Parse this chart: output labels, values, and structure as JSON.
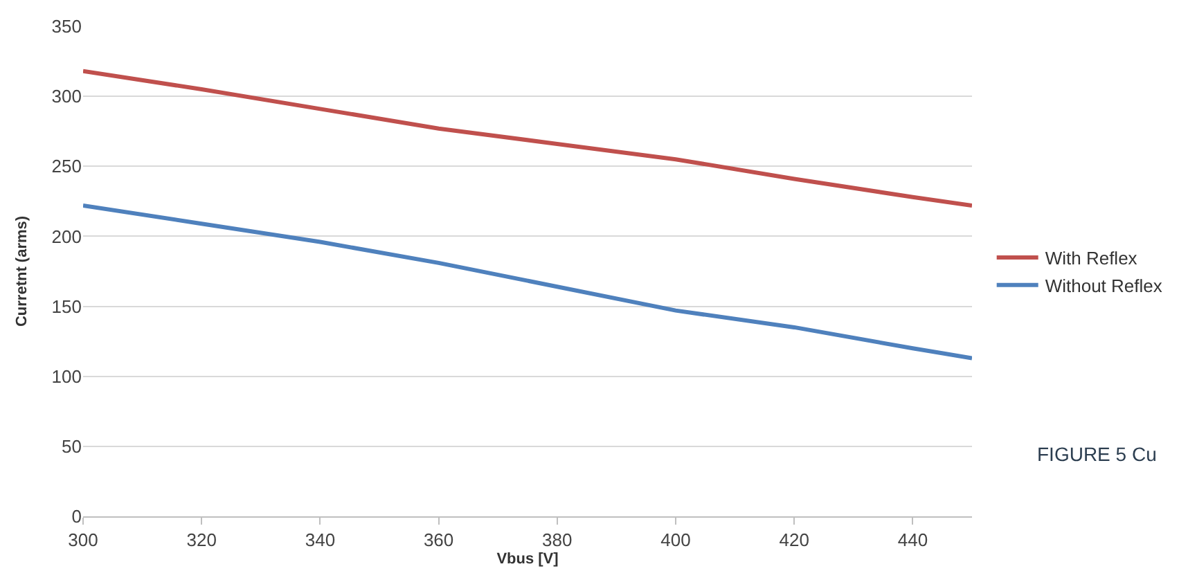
{
  "chart_data": {
    "type": "line",
    "xlabel": "Vbus [V]",
    "ylabel": "Curretnt (arms)",
    "x": [
      300,
      320,
      340,
      360,
      380,
      400,
      420,
      440,
      450
    ],
    "series": [
      {
        "name": "With Reflex",
        "color": "#c0504d",
        "values": [
          318,
          305,
          291,
          277,
          266,
          255,
          241,
          228,
          222
        ]
      },
      {
        "name": "Without Reflex",
        "color": "#4f81bd",
        "values": [
          222,
          209,
          196,
          181,
          164,
          147,
          135,
          120,
          113
        ]
      }
    ],
    "xlim": [
      300,
      450
    ],
    "xticks": [
      300,
      320,
      340,
      360,
      380,
      400,
      420,
      440
    ],
    "ylim": [
      0,
      350
    ],
    "yticks": [
      0,
      50,
      100,
      150,
      200,
      250,
      300,
      350
    ],
    "grid": "y",
    "legend": "right",
    "marker": "none",
    "line_style": "solid",
    "annotations": [
      "FIGURE 5 Cu"
    ]
  }
}
